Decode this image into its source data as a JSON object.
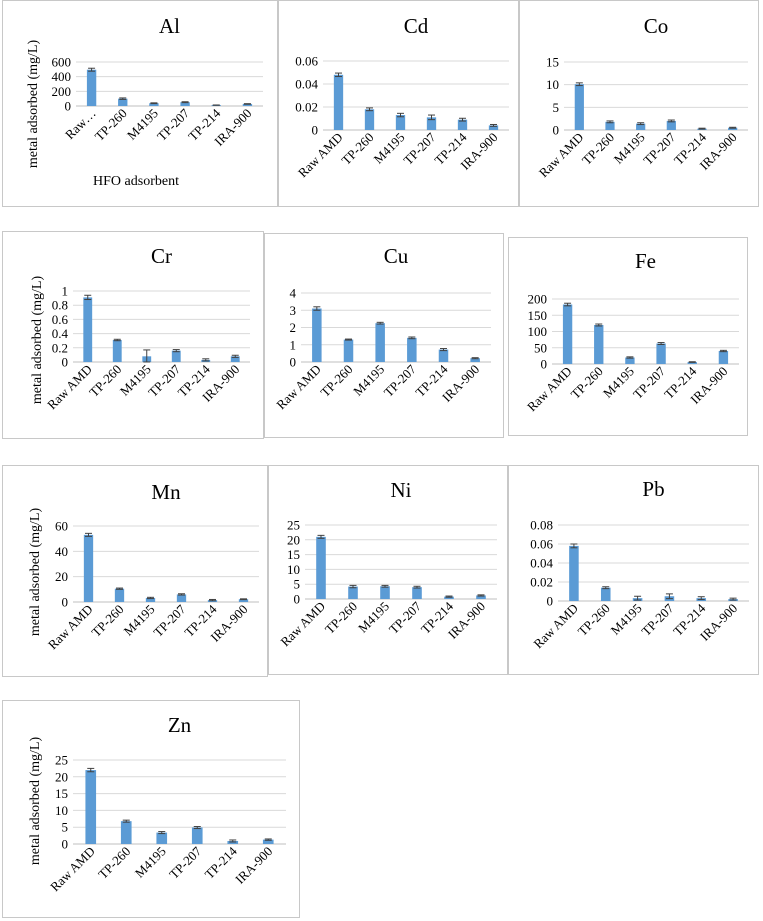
{
  "colors": {
    "bar": "#5b9bd5",
    "grid": "#d9d9d9",
    "errorbar": "#404040",
    "panel_border": "#c8c8c8"
  },
  "chart_data": [
    {
      "id": "al",
      "type": "bar",
      "title": "Al",
      "categories": [
        "Raw…",
        "TP-260",
        "M4195",
        "TP-207",
        "TP-214",
        "IRA-900"
      ],
      "values": [
        495,
        100,
        38,
        52,
        12,
        28
      ],
      "errors": [
        20,
        10,
        5,
        6,
        2,
        4
      ],
      "ylim": [
        0,
        600
      ],
      "yticks": [
        "0",
        "200",
        "400",
        "600"
      ],
      "ylabel": "metal adsorbed (mg/L)",
      "xlabel": "HFO adsorbent",
      "grid": true
    },
    {
      "id": "cd",
      "type": "bar",
      "title": "Cd",
      "categories": [
        "Raw AMD",
        "TP-260",
        "M4195",
        "TP-207",
        "TP-214",
        "IRA-900"
      ],
      "values": [
        0.048,
        0.018,
        0.013,
        0.011,
        0.009,
        0.004
      ],
      "errors": [
        0.0015,
        0.0012,
        0.0015,
        0.002,
        0.0012,
        0.0008
      ],
      "ylim": [
        0,
        0.06
      ],
      "yticks": [
        "0",
        "0.02",
        "0.04",
        "0.06"
      ],
      "ylabel": "",
      "xlabel": "",
      "grid": true
    },
    {
      "id": "co",
      "type": "bar",
      "title": "Co",
      "categories": [
        "Raw AMD",
        "TP-260",
        "M4195",
        "TP-207",
        "TP-214",
        "IRA-900"
      ],
      "values": [
        10.1,
        1.8,
        1.4,
        2.0,
        0.3,
        0.5
      ],
      "errors": [
        0.3,
        0.2,
        0.2,
        0.2,
        0.1,
        0.1
      ],
      "ylim": [
        0,
        15
      ],
      "yticks": [
        "0",
        "5",
        "10",
        "15"
      ],
      "ylabel": "",
      "xlabel": "",
      "grid": true
    },
    {
      "id": "cr",
      "type": "bar",
      "title": "Cr",
      "categories": [
        "Raw AMD",
        "TP-260",
        "M4195",
        "TP-207",
        "TP-214",
        "IRA-900"
      ],
      "values": [
        0.91,
        0.31,
        0.08,
        0.16,
        0.03,
        0.08
      ],
      "errors": [
        0.03,
        0.01,
        0.09,
        0.015,
        0.015,
        0.015
      ],
      "ylim": [
        0,
        1
      ],
      "yticks": [
        "0",
        "0.2",
        "0.4",
        "0.6",
        "0.8",
        "1"
      ],
      "ylabel": "metal adsorbed (mg/L)",
      "xlabel": "",
      "grid": true
    },
    {
      "id": "cu",
      "type": "bar",
      "title": "Cu",
      "categories": [
        "Raw AMD",
        "TP-260",
        "M4195",
        "TP-207",
        "TP-214",
        "IRA-900"
      ],
      "values": [
        3.1,
        1.3,
        2.25,
        1.4,
        0.72,
        0.22
      ],
      "errors": [
        0.1,
        0.03,
        0.05,
        0.05,
        0.06,
        0.03
      ],
      "ylim": [
        0,
        4
      ],
      "yticks": [
        "0",
        "1",
        "2",
        "3",
        "4"
      ],
      "ylabel": "",
      "xlabel": "",
      "grid": true
    },
    {
      "id": "fe",
      "type": "bar",
      "title": "Fe",
      "categories": [
        "Raw AMD",
        "TP-260",
        "M4195",
        "TP-207",
        "TP-214",
        "IRA-900"
      ],
      "values": [
        183,
        120,
        20,
        63,
        6,
        40
      ],
      "errors": [
        4,
        3,
        2,
        3,
        1,
        2
      ],
      "ylim": [
        0,
        200
      ],
      "yticks": [
        "0",
        "50",
        "100",
        "150",
        "200"
      ],
      "ylabel": "",
      "xlabel": "",
      "grid": true
    },
    {
      "id": "mn",
      "type": "bar",
      "title": "Mn",
      "categories": [
        "Raw AMD",
        "TP-260",
        "M4195",
        "TP-207",
        "TP-214",
        "IRA-900"
      ],
      "values": [
        53,
        10.5,
        3.2,
        6,
        1.5,
        2.2
      ],
      "errors": [
        1.2,
        0.5,
        0.5,
        0.5,
        0.5,
        0.3
      ],
      "ylim": [
        0,
        60
      ],
      "yticks": [
        "0",
        "20",
        "40",
        "60"
      ],
      "ylabel": "metal adsorbed (mg/L)",
      "xlabel": "",
      "grid": true
    },
    {
      "id": "ni",
      "type": "bar",
      "title": "Ni",
      "categories": [
        "Raw AMD",
        "TP-260",
        "M4195",
        "TP-207",
        "TP-214",
        "IRA-900"
      ],
      "values": [
        21,
        4.2,
        4.3,
        4.0,
        0.8,
        1.2
      ],
      "errors": [
        0.5,
        0.4,
        0.3,
        0.3,
        0.2,
        0.2
      ],
      "ylim": [
        0,
        25
      ],
      "yticks": [
        "0",
        "5",
        "10",
        "15",
        "20",
        "25"
      ],
      "ylabel": "",
      "xlabel": "",
      "grid": true
    },
    {
      "id": "pb",
      "type": "bar",
      "title": "Pb",
      "categories": [
        "Raw AMD",
        "TP-260",
        "M4195",
        "TP-207",
        "TP-214",
        "IRA-900"
      ],
      "values": [
        0.058,
        0.014,
        0.003,
        0.005,
        0.003,
        0.002
      ],
      "errors": [
        0.002,
        0.001,
        0.002,
        0.0025,
        0.0015,
        0.001
      ],
      "ylim": [
        0,
        0.08
      ],
      "yticks": [
        "0",
        "0.02",
        "0.04",
        "0.06",
        "0.08"
      ],
      "ylabel": "",
      "xlabel": "",
      "grid": true
    },
    {
      "id": "zn",
      "type": "bar",
      "title": "Zn",
      "categories": [
        "Raw AMD",
        "TP-260",
        "M4195",
        "TP-207",
        "TP-214",
        "IRA-900"
      ],
      "values": [
        22,
        6.8,
        3.4,
        4.9,
        0.9,
        1.3
      ],
      "errors": [
        0.5,
        0.3,
        0.3,
        0.3,
        0.3,
        0.2
      ],
      "ylim": [
        0,
        25
      ],
      "yticks": [
        "0",
        "5",
        "10",
        "15",
        "20",
        "25"
      ],
      "ylabel": "metal adsorbed (mg/L)",
      "xlabel": "",
      "grid": true
    }
  ]
}
